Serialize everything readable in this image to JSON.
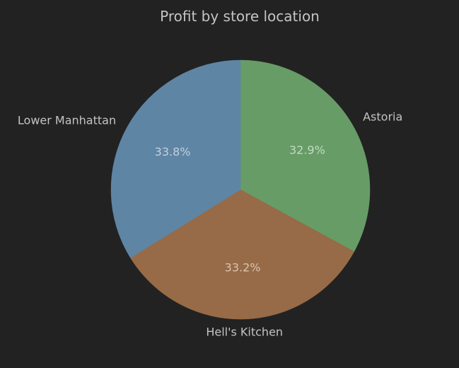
{
  "chart_data": {
    "type": "pie",
    "title": "Profit by store location",
    "categories": [
      "Astoria",
      "Hell's Kitchen",
      "Lower Manhattan"
    ],
    "values": [
      32.9,
      33.2,
      33.8
    ],
    "percent_labels": [
      "32.9%",
      "33.2%",
      "33.8%"
    ],
    "colors": [
      "#679c67",
      "#976b47",
      "#5f85a4"
    ],
    "percent_label_colors": [
      "#c6d9c3",
      "#dac3b1",
      "#c1cfdb"
    ],
    "start_angle_deg": 90,
    "direction": "clockwise"
  }
}
